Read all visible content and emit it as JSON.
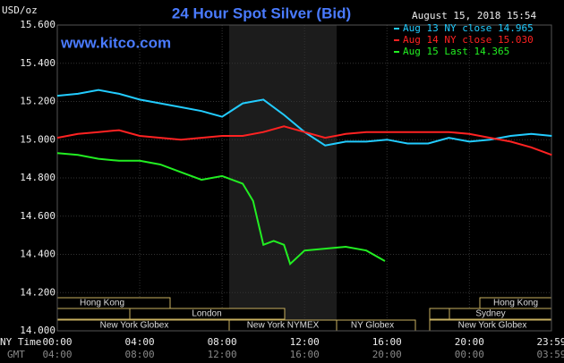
{
  "chart_data": {
    "type": "line",
    "title": "24 Hour Spot Silver (Bid)",
    "timestamp": "August 15, 2018 15:54",
    "watermark": "www.kitco.com",
    "ylabel": "USD/oz",
    "xlabel": "NY Time",
    "x2label": "GMT",
    "xlim": [
      0,
      23.983
    ],
    "xticks": [
      {
        "value": 0,
        "label": "00:00"
      },
      {
        "value": 4,
        "label": "04:00"
      },
      {
        "value": 8,
        "label": "08:00"
      },
      {
        "value": 12,
        "label": "12:00"
      },
      {
        "value": 16,
        "label": "16:00"
      },
      {
        "value": 20,
        "label": "20:00"
      },
      {
        "value": 23.983,
        "label": "23:59"
      }
    ],
    "gmt_labels": [
      "04:00",
      "08:00",
      "12:00",
      "16:00",
      "20:00",
      "00:00",
      "03:59"
    ],
    "ylim": [
      14.0,
      15.6
    ],
    "yticks": [
      {
        "value": 14.0,
        "label": "14.000"
      },
      {
        "value": 14.2,
        "label": "14.200"
      },
      {
        "value": 14.4,
        "label": "14.400"
      },
      {
        "value": 14.6,
        "label": "14.600"
      },
      {
        "value": 14.8,
        "label": "14.800"
      },
      {
        "value": 15.0,
        "label": "15.000"
      },
      {
        "value": 15.2,
        "label": "15.200"
      },
      {
        "value": 15.4,
        "label": "15.400"
      },
      {
        "value": 15.6,
        "label": "15.600"
      }
    ],
    "grid": true,
    "sessions": [
      "Hong Kong",
      "London",
      "New York Globex",
      "New York NYMEX",
      "NY Globex",
      "Hong Kong",
      "Sydney",
      "New York Globex"
    ],
    "series": [
      {
        "name": "Aug 13 NY close 14.965",
        "color": "#22ccff",
        "x": [
          0,
          1,
          2,
          3,
          4,
          5,
          6,
          7,
          8,
          9,
          10,
          11,
          12,
          13,
          14,
          15,
          16,
          17,
          18,
          19,
          20,
          21,
          22,
          23,
          24
        ],
        "values": [
          15.23,
          15.24,
          15.26,
          15.24,
          15.21,
          15.19,
          15.17,
          15.15,
          15.12,
          15.19,
          15.21,
          15.13,
          15.04,
          14.97,
          14.99,
          14.99,
          15.0,
          14.98,
          14.98,
          15.01,
          14.99,
          15.0,
          15.02,
          15.03,
          15.02
        ]
      },
      {
        "name": "Aug 14 NY close 15.030",
        "color": "#ff2222",
        "x": [
          0,
          1,
          2,
          3,
          4,
          5,
          6,
          7,
          8,
          9,
          10,
          11,
          12,
          13,
          14,
          15,
          16,
          17,
          18,
          19,
          20,
          21,
          22,
          23,
          24
        ],
        "values": [
          15.01,
          15.03,
          15.04,
          15.05,
          15.02,
          15.01,
          15.0,
          15.01,
          15.02,
          15.02,
          15.04,
          15.07,
          15.04,
          15.01,
          15.03,
          15.04,
          15.04,
          15.04,
          15.04,
          15.04,
          15.03,
          15.01,
          14.99,
          14.96,
          14.92
        ]
      },
      {
        "name": "Aug 15 Last 14.365",
        "color": "#22ee22",
        "x": [
          0,
          1,
          2,
          3,
          4,
          5,
          6,
          7,
          8,
          9,
          9.5,
          10,
          10.5,
          11,
          11.3,
          12,
          13,
          14,
          15,
          15.9
        ],
        "values": [
          14.93,
          14.92,
          14.9,
          14.89,
          14.89,
          14.87,
          14.83,
          14.79,
          14.81,
          14.77,
          14.68,
          14.45,
          14.47,
          14.45,
          14.35,
          14.42,
          14.43,
          14.44,
          14.42,
          14.365
        ]
      }
    ]
  }
}
